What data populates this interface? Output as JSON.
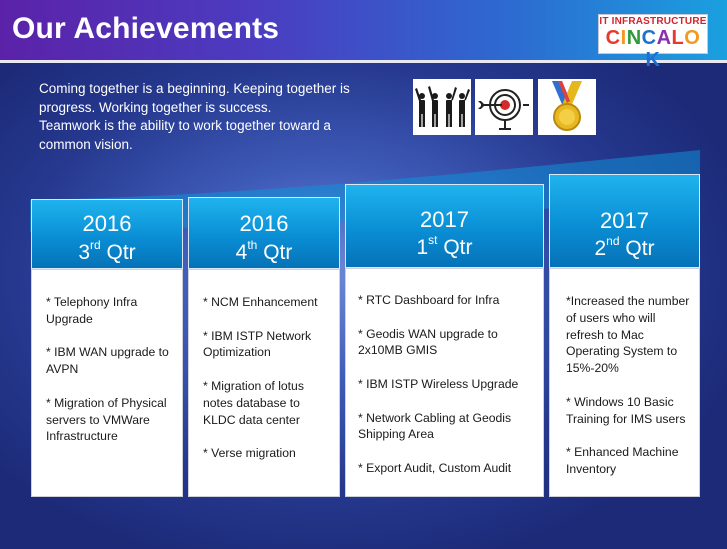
{
  "title": "Our Achievements",
  "logo": {
    "top_text": "IT INFRASTRUCTURE",
    "main_text": "CINCALOK"
  },
  "quote": [
    "Coming together is a beginning. Keeping together is",
    "progress. Working together is success.",
    "Teamwork is the ability to work together toward a",
    "common vision."
  ],
  "icons": [
    "teamwork-people-icon",
    "target-arrow-icon",
    "gold-medal-icon"
  ],
  "colors": {
    "header_start": "#5b22a8",
    "header_end": "#1aa0df",
    "column_header": "#0a8ed4",
    "background": "#26398f"
  },
  "columns": [
    {
      "year": "2016",
      "qtr_num": "3",
      "qtr_suffix": "rd",
      "qtr_word": "Qtr",
      "items": [
        "* Telephony Infra Upgrade",
        "* IBM WAN upgrade to AVPN",
        "* Migration of Physical servers to VMWare Infrastructure"
      ]
    },
    {
      "year": "2016",
      "qtr_num": "4",
      "qtr_suffix": "th",
      "qtr_word": "Qtr",
      "items": [
        "* NCM Enhancement",
        "* IBM ISTP Network Optimization",
        "* Migration of lotus notes database to KLDC data center",
        "* Verse migration"
      ]
    },
    {
      "year": "2017",
      "qtr_num": "1",
      "qtr_suffix": "st",
      "qtr_word": "Qtr",
      "items": [
        "* RTC Dashboard for Infra",
        "* Geodis WAN upgrade to 2x10MB GMIS",
        "* IBM ISTP Wireless Upgrade",
        "* Network Cabling at Geodis Shipping Area",
        "* Export Audit, Custom Audit"
      ]
    },
    {
      "year": "2017",
      "qtr_num": "2",
      "qtr_suffix": "nd",
      "qtr_word": "Qtr",
      "items": [
        "*Increased the number of users who will refresh to Mac Operating System to 15%-20%",
        "* Windows 10 Basic Training for IMS users",
        "* Enhanced Machine Inventory"
      ]
    }
  ]
}
